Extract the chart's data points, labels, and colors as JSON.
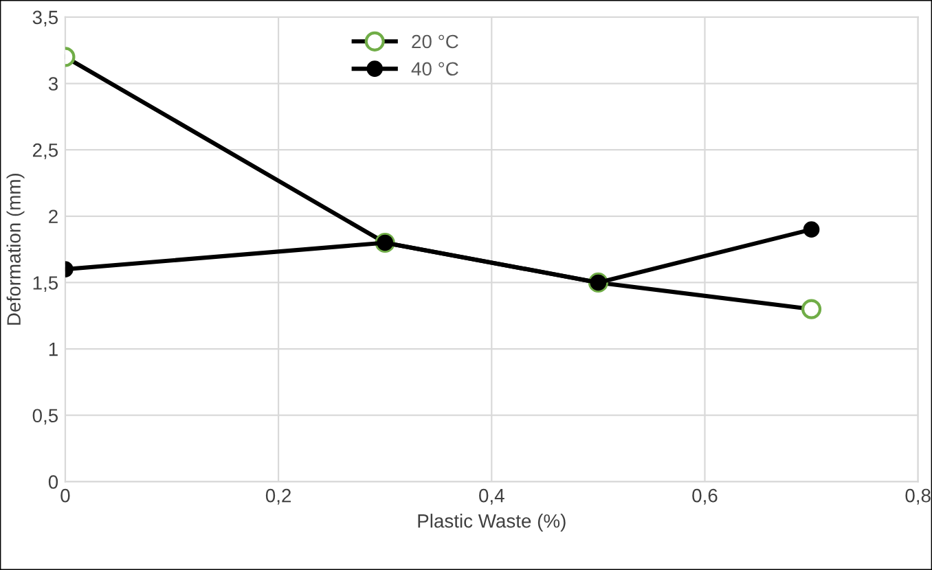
{
  "chart_data": {
    "type": "line",
    "xlabel": "Plastic Waste (%)",
    "ylabel": "Deformation (mm)",
    "x": [
      0,
      0.3,
      0.5,
      0.7
    ],
    "series": [
      {
        "name": "20 °C",
        "color": "#70ad47",
        "values": [
          3.2,
          1.8,
          1.5,
          1.3
        ]
      },
      {
        "name": "40 °C",
        "color": "#000000",
        "values": [
          1.6,
          1.8,
          1.5,
          1.9
        ]
      }
    ],
    "xlim": [
      0,
      0.8
    ],
    "ylim": [
      0,
      3.5
    ],
    "xticks": [
      0,
      {
        "value": 0.2,
        "label": "0,2"
      },
      {
        "value": 0.4,
        "label": "0,4"
      },
      {
        "value": 0.6,
        "label": "0,6"
      },
      {
        "value": 0.8,
        "label": "0,8"
      }
    ],
    "yticks": [
      0,
      {
        "value": 0.5,
        "label": "0,5"
      },
      1,
      {
        "value": 1.5,
        "label": "1,5"
      },
      2,
      {
        "value": 2.5,
        "label": "2,5"
      },
      3,
      {
        "value": 3.5,
        "label": "3,5"
      }
    ],
    "grid": true,
    "legend": "top",
    "marker": "circle",
    "line_style": "solid"
  }
}
